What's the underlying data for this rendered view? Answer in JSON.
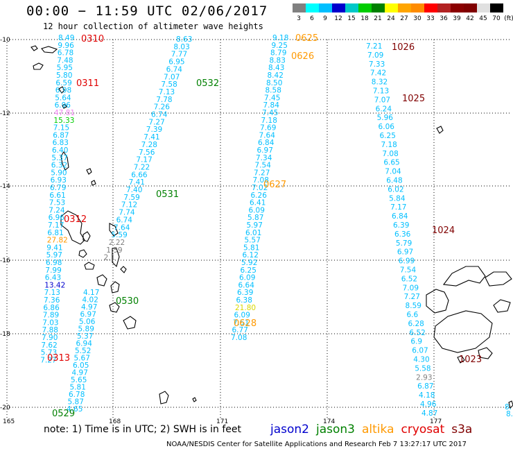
{
  "header": {
    "title": "00:00 − 11:59 UTC 02/06/2017",
    "subtitle": "12 hour collection of altimeter wave heights"
  },
  "scale": {
    "unit": "(ft)",
    "ticks": [
      "3",
      "6",
      "9",
      "12",
      "15",
      "18",
      "21",
      "24",
      "27",
      "30",
      "33",
      "36",
      "39",
      "42",
      "45",
      "70"
    ],
    "colors": [
      "#808080",
      "#00ffff",
      "#00bfff",
      "#0000cd",
      "#00c8c8",
      "#00cd00",
      "#008000",
      "#ffff00",
      "#ffa500",
      "#ff8c00",
      "#ff0000",
      "#b22222",
      "#8b0000",
      "#800000",
      "#e0e0e0",
      "#000000"
    ]
  },
  "axes": {
    "lon_labels": [
      "165",
      "168",
      "171",
      "174",
      "177"
    ],
    "lat_labels": [
      "-10",
      "-12",
      "-14",
      "-16",
      "-18",
      "-20"
    ]
  },
  "tracks": [
    {
      "pass": "0310",
      "pass_color": "#e00000",
      "values": [
        "8.49",
        "9.96",
        "6.78",
        "7.48",
        "5.95",
        "5.80",
        "6.59",
        "6.98",
        "5.64",
        "6.96",
        "47.81",
        "15.33",
        "7.15",
        "6.87",
        "6.83",
        "6.40",
        "5.37",
        "6.32",
        "5.90",
        "6.93",
        "6.79",
        "6.61",
        "7.53",
        "7.24",
        "6.96",
        "7.17",
        "6.81",
        "27.82",
        "9.41",
        "5.97",
        "6.98",
        "7.99",
        "6.43",
        "13.42",
        "7.13",
        "7.36",
        "6.86",
        "7.89",
        "7.03",
        "7.88",
        "7.90",
        "7.62",
        "5.73",
        "7.27"
      ]
    },
    {
      "pass": "0311",
      "pass_color": "#e00000",
      "values": []
    },
    {
      "pass": "0312",
      "pass_color": "#e00000",
      "values": []
    },
    {
      "pass": "0313",
      "pass_color": "#e00000",
      "values": []
    },
    {
      "pass": "0532",
      "pass_color": "#008000",
      "values": [
        "8.63",
        "8.03",
        "7.77",
        "6.95",
        "6.74",
        "7.07",
        "7.58",
        "7.13",
        "7.78",
        "7.26",
        "6.74",
        "7.27",
        "7.39",
        "7.41",
        "7.28",
        "7.56",
        "7.17",
        "7.22",
        "6.66",
        "7.41",
        "7.40",
        "7.59",
        "7.12",
        "7.74",
        "6.74",
        "7.64",
        "5.59",
        "2.22",
        "1.59",
        "2.1"
      ]
    },
    {
      "pass": "0531",
      "pass_color": "#008000",
      "values": []
    },
    {
      "pass": "0530",
      "pass_color": "#008000",
      "values": [
        "4.17",
        "4.02",
        "4.97",
        "6.97",
        "5.06",
        "5.89",
        "5.37",
        "6.94",
        "5.52",
        "5.67",
        "6.05",
        "4.97",
        "5.65",
        "5.81",
        "6.78",
        "5.87",
        "4.65"
      ]
    },
    {
      "pass": "0529",
      "pass_color": "#008000",
      "values": []
    },
    {
      "pass": "0625",
      "pass_color": "#ff9900",
      "values": [
        "9.18",
        "9.25",
        "8.79",
        "8.83",
        "8.43",
        "8.42",
        "8.50",
        "8.58",
        "7.45",
        "7.84",
        "7.45",
        "7.18",
        "7.69",
        "7.64",
        "6.84",
        "6.97",
        "7.34",
        "7.54",
        "7.27",
        "7.08",
        "7.02",
        "6.26",
        "6.41",
        "6.09",
        "5.87",
        "5.97",
        "6.01",
        "5.57",
        "5.81",
        "6.12",
        "5.92",
        "6.25",
        "6.09",
        "6.64",
        "6.39",
        "6.38",
        "21.80",
        "6.09",
        "7.51",
        "6.77",
        "7.08"
      ]
    },
    {
      "pass": "0626",
      "pass_color": "#ff9900",
      "values": []
    },
    {
      "pass": "0627",
      "pass_color": "#ff9900",
      "values": []
    },
    {
      "pass": "0628",
      "pass_color": "#ff9900",
      "values": []
    },
    {
      "pass": "1026",
      "pass_color": "#800000",
      "values": [
        "7.21",
        "7.09",
        "7.33",
        "7.42",
        "8.32",
        "7.13",
        "7.07",
        "6.24",
        "5.96",
        "6.06",
        "6.25",
        "7.18",
        "7.08",
        "6.65",
        "7.04",
        "6.48",
        "6.02",
        "5.84",
        "7.17",
        "6.84",
        "6.39",
        "6.36",
        "5.79",
        "6.97",
        "6.99",
        "7.54",
        "6.52",
        "7.09",
        "7.27",
        "8.59",
        "6.6",
        "6.28",
        "6.52",
        "6.9",
        "6.07",
        "4.30",
        "5.58",
        "2.93",
        "6.87",
        "4.18",
        "4.96",
        "4.87"
      ]
    },
    {
      "pass": "1025",
      "pass_color": "#800000",
      "values": []
    },
    {
      "pass": "1024",
      "pass_color": "#800000",
      "values": []
    },
    {
      "pass": "1023",
      "pass_color": "#800000",
      "values": []
    }
  ],
  "extra_values": [
    "8.",
    "8."
  ],
  "note": "note: 1) Time is in UTC; 2) SWH is in feet",
  "legend": [
    {
      "name": "jason2",
      "color": "#0000cd"
    },
    {
      "name": "jason3",
      "color": "#008000"
    },
    {
      "name": "altika",
      "color": "#ff9900"
    },
    {
      "name": "cryosat",
      "color": "#e00000"
    },
    {
      "name": "s3a",
      "color": "#800000"
    }
  ],
  "credit": "NOAA/NESDIS Center for Satellite Applications and Research    Feb  7 13:27:17 UTC 2017"
}
